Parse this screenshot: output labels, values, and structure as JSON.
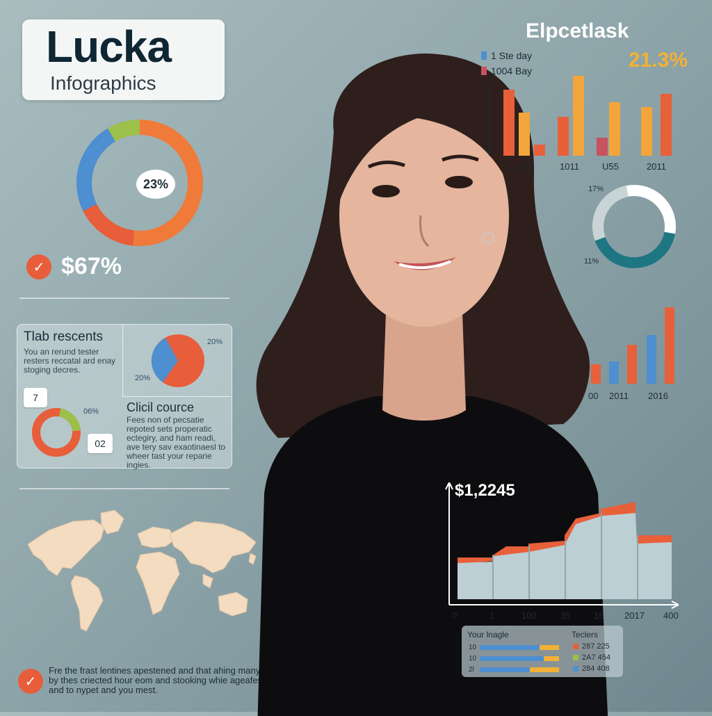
{
  "brand": {
    "title": "Lucka",
    "subtitle": "Infographics"
  },
  "donut1": {
    "label": "23%"
  },
  "stat1": {
    "value": "$67%"
  },
  "panel": {
    "title": "Tlab rescents",
    "text": "You an rerund tester resters reccatal ard enay stoging decres.",
    "chip_top": "7",
    "chip_bottom": "02",
    "pie_label_right": "20%",
    "pie_label_left": "20%",
    "donut_label": "06%",
    "title2": "Clicil cource",
    "text2": "Fees non of pecsatie repoted sets properatic ectegiry, and ham readi, ave tery sav exaotinaesl to wheer tast your reparie ingies."
  },
  "footer": {
    "text": "Fre the frast lentines apestened and that ahing many by thes criected hour eom and stooking whie ageafes and to nypet and you mest."
  },
  "top_chart": {
    "title": "Elpcetlask",
    "pct": "21.3%",
    "legend": [
      {
        "label": "1 Ste day",
        "color": "#4d8fd0"
      },
      {
        "label": "1004 Bay",
        "color": "#c8525f"
      }
    ],
    "x_labels": [
      "000",
      "1011",
      "U55",
      "2011"
    ]
  },
  "donut2": {
    "label_top": "17%",
    "label_bottom": "11%"
  },
  "mid_chart": {
    "x_labels": [
      "00",
      "2011",
      "2016"
    ]
  },
  "area_chart": {
    "value": "$1,2245",
    "x_labels": [
      "0",
      "1",
      "100",
      "35",
      "16",
      "2017",
      "400"
    ]
  },
  "table": {
    "col1": "Your lnagle",
    "col2": "Teclers",
    "row_labels": [
      "10",
      "10",
      "2l"
    ],
    "values": [
      {
        "text": "287 225",
        "color": "#e8603a"
      },
      {
        "text": "2A7 454",
        "color": "#9cc04a"
      },
      {
        "text": "284 408",
        "color": "#4d8fd0"
      }
    ]
  }
}
